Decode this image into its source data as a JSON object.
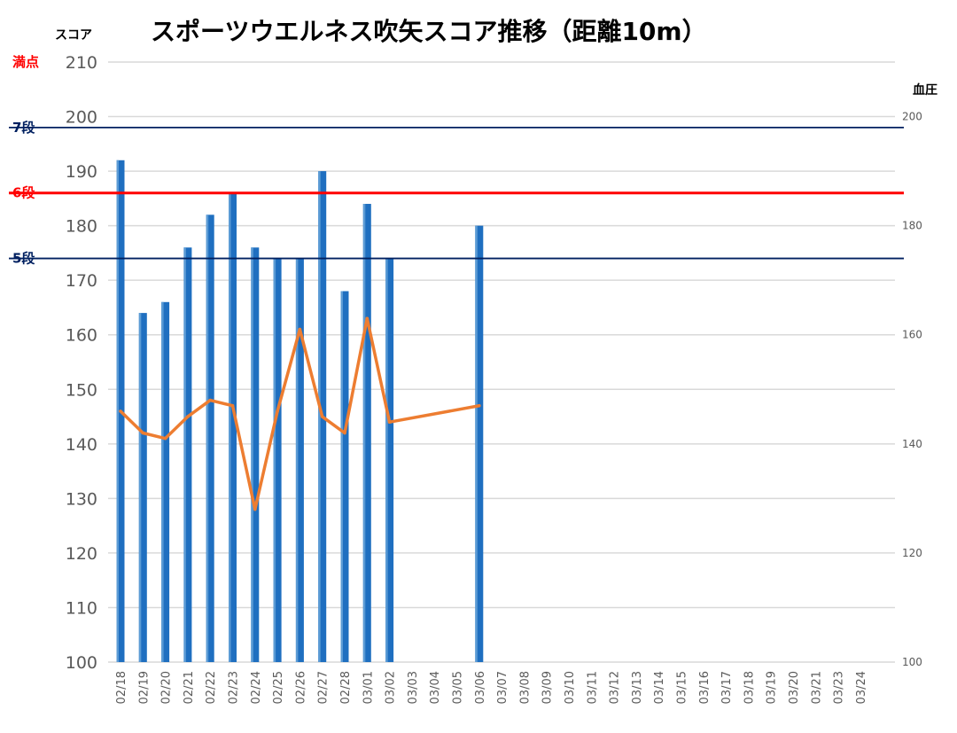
{
  "chart_data": {
    "type": "bar",
    "title": "スポーツウエルネス吹矢スコア推移（距離10m）",
    "ylabel": "スコア",
    "y2label": "血圧",
    "ylim": [
      100,
      210
    ],
    "y_ticks": [
      100,
      110,
      120,
      130,
      140,
      150,
      160,
      170,
      180,
      190,
      200,
      210
    ],
    "y2lim": [
      100,
      210
    ],
    "y2_ticks": [
      100,
      120,
      140,
      160,
      180,
      200
    ],
    "grid": true,
    "categories": [
      "02/18",
      "02/19",
      "02/20",
      "02/21",
      "02/22",
      "02/23",
      "02/24",
      "02/25",
      "02/26",
      "02/27",
      "02/28",
      "03/01",
      "03/02",
      "03/03",
      "03/04",
      "03/05",
      "03/06",
      "03/07",
      "03/08",
      "03/09",
      "03/10",
      "03/11",
      "03/12",
      "03/13",
      "03/14",
      "03/15",
      "03/16",
      "03/17",
      "03/18",
      "03/19",
      "03/20",
      "03/21",
      "03/23",
      "03/24"
    ],
    "series": [
      {
        "type": "bar",
        "color": "#1f6fc0",
        "values": [
          192,
          164,
          166,
          176,
          182,
          186,
          176,
          174,
          174,
          190,
          168,
          184,
          174,
          null,
          null,
          null,
          180,
          null,
          null,
          null,
          null,
          null,
          null,
          null,
          null,
          null,
          null,
          null,
          null,
          null,
          null,
          null,
          null,
          null
        ]
      },
      {
        "type": "line",
        "axis": "right",
        "color": "#ed7d31",
        "values": [
          146,
          142,
          141,
          145,
          148,
          147,
          128,
          146,
          161,
          145,
          142,
          163,
          144,
          null,
          null,
          null,
          147,
          null,
          null,
          null,
          null,
          null,
          null,
          null,
          null,
          null,
          null,
          null,
          null,
          null,
          null,
          null,
          null,
          null
        ]
      }
    ],
    "reference_lines": [
      {
        "label": "満点",
        "value": 210,
        "color": "#ff0000"
      },
      {
        "label": "7段",
        "value": 198,
        "color": "#002060"
      },
      {
        "label": "6段",
        "value": 186,
        "color": "#ff0000"
      },
      {
        "label": "5段",
        "value": 174,
        "color": "#002060"
      }
    ]
  }
}
